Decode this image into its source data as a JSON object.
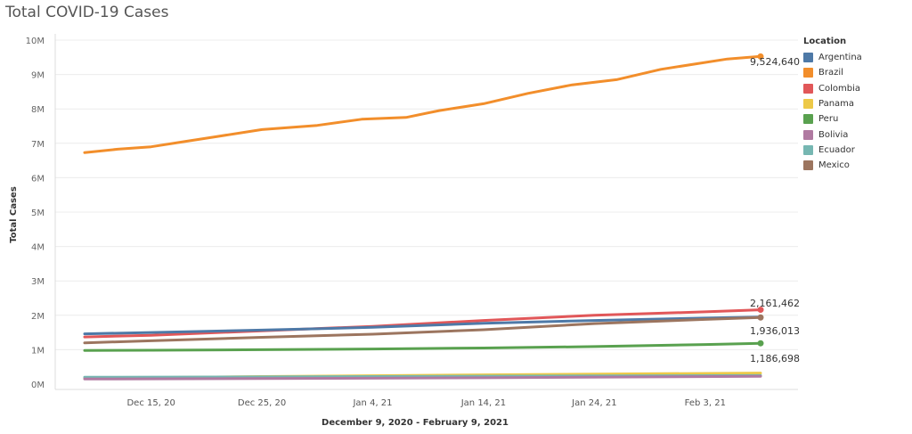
{
  "title": "Total COVID-19 Cases",
  "legend": {
    "title": "Location",
    "items": [
      {
        "label": "Argentina",
        "color": "#4E79A7"
      },
      {
        "label": "Brazil",
        "color": "#F28E2B"
      },
      {
        "label": "Colombia",
        "color": "#E15759"
      },
      {
        "label": "Panama",
        "color": "#EDC948"
      },
      {
        "label": "Peru",
        "color": "#59A14F"
      },
      {
        "label": "Bolivia",
        "color": "#B07AA1"
      },
      {
        "label": "Ecuador",
        "color": "#76B7B2"
      },
      {
        "label": "Mexico",
        "color": "#9C755F"
      }
    ]
  },
  "chart_data": {
    "type": "line",
    "title": "Total COVID-19 Cases",
    "xlabel": "December 9, 2020 - February 9, 2021",
    "ylabel": "Total Cases",
    "x_start": "2020-12-09",
    "x_end": "2021-02-09",
    "x_ticks": [
      {
        "label": "Dec 15, 20",
        "date": "2020-12-15"
      },
      {
        "label": "Dec 25, 20",
        "date": "2020-12-25"
      },
      {
        "label": "Jan 4, 21",
        "date": "2021-01-04"
      },
      {
        "label": "Jan 14, 21",
        "date": "2021-01-14"
      },
      {
        "label": "Jan 24, 21",
        "date": "2021-01-24"
      },
      {
        "label": "Feb 3, 21",
        "date": "2021-02-03"
      }
    ],
    "y_ticks": [
      {
        "label": "0M",
        "value": 0
      },
      {
        "label": "1M",
        "value": 1000000
      },
      {
        "label": "2M",
        "value": 2000000
      },
      {
        "label": "3M",
        "value": 3000000
      },
      {
        "label": "4M",
        "value": 4000000
      },
      {
        "label": "5M",
        "value": 5000000
      },
      {
        "label": "6M",
        "value": 6000000
      },
      {
        "label": "7M",
        "value": 7000000
      },
      {
        "label": "8M",
        "value": 8000000
      },
      {
        "label": "9M",
        "value": 9000000
      },
      {
        "label": "10M",
        "value": 10000000
      }
    ],
    "ylim": [
      0,
      10000000
    ],
    "grid": true,
    "legend_position": "right",
    "series": [
      {
        "name": "Brazil",
        "color": "#F28E2B",
        "end_label": "9,524,640",
        "points": [
          [
            "2020-12-09",
            6730000
          ],
          [
            "2020-12-12",
            6830000
          ],
          [
            "2020-12-15",
            6900000
          ],
          [
            "2020-12-18",
            7050000
          ],
          [
            "2020-12-21",
            7200000
          ],
          [
            "2020-12-25",
            7400000
          ],
          [
            "2020-12-30",
            7520000
          ],
          [
            "2021-01-03",
            7700000
          ],
          [
            "2021-01-07",
            7750000
          ],
          [
            "2021-01-10",
            7950000
          ],
          [
            "2021-01-14",
            8150000
          ],
          [
            "2021-01-18",
            8450000
          ],
          [
            "2021-01-22",
            8700000
          ],
          [
            "2021-01-26",
            8850000
          ],
          [
            "2021-01-30",
            9150000
          ],
          [
            "2021-02-02",
            9300000
          ],
          [
            "2021-02-05",
            9450000
          ],
          [
            "2021-02-08",
            9524640
          ]
        ]
      },
      {
        "name": "Colombia",
        "color": "#E15759",
        "end_label": "2,161,462",
        "points": [
          [
            "2020-12-09",
            1370000
          ],
          [
            "2020-12-15",
            1420000
          ],
          [
            "2020-12-25",
            1550000
          ],
          [
            "2021-01-04",
            1680000
          ],
          [
            "2021-01-14",
            1850000
          ],
          [
            "2021-01-24",
            2000000
          ],
          [
            "2021-02-03",
            2100000
          ],
          [
            "2021-02-08",
            2161462
          ]
        ]
      },
      {
        "name": "Argentina",
        "color": "#4E79A7",
        "end_label": "",
        "points": [
          [
            "2020-12-09",
            1460000
          ],
          [
            "2020-12-15",
            1500000
          ],
          [
            "2020-12-25",
            1570000
          ],
          [
            "2021-01-04",
            1650000
          ],
          [
            "2021-01-14",
            1770000
          ],
          [
            "2021-01-24",
            1850000
          ],
          [
            "2021-02-03",
            1920000
          ],
          [
            "2021-02-08",
            1950000
          ]
        ]
      },
      {
        "name": "Mexico",
        "color": "#9C755F",
        "end_label": "1,936,013",
        "points": [
          [
            "2020-12-09",
            1200000
          ],
          [
            "2020-12-15",
            1260000
          ],
          [
            "2020-12-25",
            1360000
          ],
          [
            "2021-01-04",
            1450000
          ],
          [
            "2021-01-14",
            1580000
          ],
          [
            "2021-01-24",
            1760000
          ],
          [
            "2021-02-03",
            1880000
          ],
          [
            "2021-02-08",
            1936013
          ]
        ]
      },
      {
        "name": "Peru",
        "color": "#59A14F",
        "end_label": "1,186,698",
        "points": [
          [
            "2020-12-09",
            980000
          ],
          [
            "2020-12-15",
            985000
          ],
          [
            "2020-12-25",
            1000000
          ],
          [
            "2021-01-04",
            1020000
          ],
          [
            "2021-01-14",
            1050000
          ],
          [
            "2021-01-24",
            1090000
          ],
          [
            "2021-02-03",
            1150000
          ],
          [
            "2021-02-08",
            1186698
          ]
        ]
      },
      {
        "name": "Panama",
        "color": "#EDC948",
        "end_label": "",
        "points": [
          [
            "2020-12-09",
            170000
          ],
          [
            "2020-12-25",
            220000
          ],
          [
            "2021-01-14",
            270000
          ],
          [
            "2021-02-08",
            320000
          ]
        ]
      },
      {
        "name": "Ecuador",
        "color": "#76B7B2",
        "end_label": "",
        "points": [
          [
            "2020-12-09",
            200000
          ],
          [
            "2020-12-25",
            210000
          ],
          [
            "2021-01-14",
            230000
          ],
          [
            "2021-02-08",
            250000
          ]
        ]
      },
      {
        "name": "Bolivia",
        "color": "#B07AA1",
        "end_label": "",
        "points": [
          [
            "2020-12-09",
            148000
          ],
          [
            "2020-12-25",
            160000
          ],
          [
            "2021-01-14",
            185000
          ],
          [
            "2021-02-08",
            225000
          ]
        ]
      }
    ]
  }
}
